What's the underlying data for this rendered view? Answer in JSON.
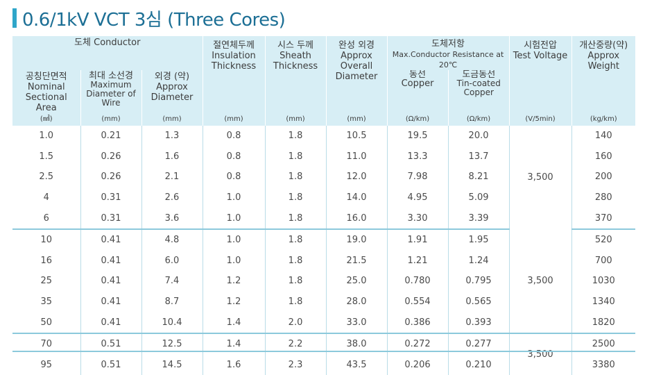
{
  "title": "0.6/1kV VCT 3심 (Three Cores)",
  "header": {
    "conductor_group": "도체 Conductor",
    "area": [
      "공칭단면적",
      "Nominal",
      "Sectional Area"
    ],
    "max_wire": [
      "최대 소선경",
      "Maximum",
      "Diameter of Wire"
    ],
    "approx_dia": [
      "외경 (약)",
      "Approx",
      "Diameter"
    ],
    "insulation": [
      "절연체두께",
      "Insulation",
      "Thickness"
    ],
    "sheath": [
      "시스 두께",
      "Sheath",
      "Thickness"
    ],
    "overall": [
      "완성 외경",
      "Approx Overall",
      "Diameter"
    ],
    "resistance_group": [
      "도체저항",
      "Max.Conductor Resistance at 20℃"
    ],
    "copper": [
      "동선",
      "Copper"
    ],
    "tin_copper": [
      "도금동선",
      "Tin-coated",
      "Copper"
    ],
    "test_voltage": [
      "시험전압",
      "Test Voltage"
    ],
    "weight": [
      "개산중량(약)",
      "Approx",
      "Weight"
    ],
    "units": {
      "area": "(㎟)",
      "max_wire": "(mm)",
      "approx_dia": "(mm)",
      "insulation": "(mm)",
      "sheath": "(mm)",
      "overall": "(mm)",
      "copper": "(Ω/km)",
      "tin_copper": "(Ω/km)",
      "test_voltage": "(V/5min)",
      "weight": "(kg/km)"
    }
  },
  "rows": [
    {
      "area": "1.0",
      "wire": "0.21",
      "dia": "1.3",
      "ins": "0.8",
      "sheath": "1.8",
      "overall": "10.5",
      "cu": "19.5",
      "tcu": "20.0",
      "weight": "140"
    },
    {
      "area": "1.5",
      "wire": "0.26",
      "dia": "1.6",
      "ins": "0.8",
      "sheath": "1.8",
      "overall": "11.0",
      "cu": "13.3",
      "tcu": "13.7",
      "weight": "160"
    },
    {
      "area": "2.5",
      "wire": "0.26",
      "dia": "2.1",
      "ins": "0.8",
      "sheath": "1.8",
      "overall": "12.0",
      "cu": "7.98",
      "tcu": "8.21",
      "weight": "200"
    },
    {
      "area": "4",
      "wire": "0.31",
      "dia": "2.6",
      "ins": "1.0",
      "sheath": "1.8",
      "overall": "14.0",
      "cu": "4.95",
      "tcu": "5.09",
      "weight": "280"
    },
    {
      "area": "6",
      "wire": "0.31",
      "dia": "3.6",
      "ins": "1.0",
      "sheath": "1.8",
      "overall": "16.0",
      "cu": "3.30",
      "tcu": "3.39",
      "weight": "370"
    },
    {
      "area": "10",
      "wire": "0.41",
      "dia": "4.8",
      "ins": "1.0",
      "sheath": "1.8",
      "overall": "19.0",
      "cu": "1.91",
      "tcu": "1.95",
      "weight": "520"
    },
    {
      "area": "16",
      "wire": "0.41",
      "dia": "6.0",
      "ins": "1.0",
      "sheath": "1.8",
      "overall": "21.5",
      "cu": "1.21",
      "tcu": "1.24",
      "weight": "700"
    },
    {
      "area": "25",
      "wire": "0.41",
      "dia": "7.4",
      "ins": "1.2",
      "sheath": "1.8",
      "overall": "25.0",
      "cu": "0.780",
      "tcu": "0.795",
      "weight": "1030"
    },
    {
      "area": "35",
      "wire": "0.41",
      "dia": "8.7",
      "ins": "1.2",
      "sheath": "1.8",
      "overall": "28.0",
      "cu": "0.554",
      "tcu": "0.565",
      "weight": "1340"
    },
    {
      "area": "50",
      "wire": "0.41",
      "dia": "10.4",
      "ins": "1.4",
      "sheath": "2.0",
      "overall": "33.0",
      "cu": "0.386",
      "tcu": "0.393",
      "weight": "1820"
    },
    {
      "area": "70",
      "wire": "0.51",
      "dia": "12.5",
      "ins": "1.4",
      "sheath": "2.2",
      "overall": "38.0",
      "cu": "0.272",
      "tcu": "0.277",
      "weight": "2500"
    },
    {
      "area": "95",
      "wire": "0.51",
      "dia": "14.5",
      "ins": "1.6",
      "sheath": "2.3",
      "overall": "43.5",
      "cu": "0.206",
      "tcu": "0.210",
      "weight": "3380"
    }
  ],
  "test_voltages": [
    "3,500",
    "3,500",
    "3,500"
  ]
}
